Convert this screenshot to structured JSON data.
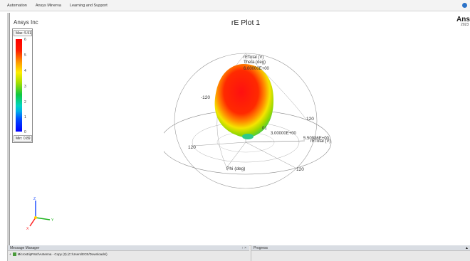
{
  "menubar": {
    "items": [
      "Automation",
      "Ansys Minerva",
      "Learning and Support"
    ]
  },
  "plot": {
    "company": "Ansys Inc",
    "title": "rE Plot 1",
    "brand": "Ansy",
    "brand_sub": "2023"
  },
  "legend": {
    "max_label": "Max: 5.51",
    "min_label": "Min: 0.89",
    "ticks": [
      "6",
      "5",
      "4",
      "3",
      "2",
      "1",
      "0"
    ]
  },
  "axes_labels": {
    "top_quantity": "rETotal (V)",
    "theta": "Theta (deg)",
    "top_value": "6.00000E+00",
    "left_angle": "-120",
    "right_upper_angle": "120",
    "right_lower_angle": "120",
    "left_lower_angle": "120",
    "center_value": "3.00000E+00",
    "center_small": "01",
    "right_value": "5.50936E+00",
    "right_quantity": "rETotal (V)",
    "phi": "Phi (deg)"
  },
  "triad": {
    "z": "Z",
    "y": "Y",
    "x": "X"
  },
  "message_manager": {
    "title": "Message Manager",
    "controls": "↑ ×",
    "row": "MicrostripPatchAntenna - Copy (2) (C:/Users/ECE/Downloads/)"
  },
  "progress": {
    "title": "Progress",
    "arrow": "▲"
  },
  "colors": {
    "red": "#ff0000",
    "yellow": "#ffee00",
    "green": "#10c840",
    "cyan": "#00d5c0",
    "blue": "#0000ff"
  }
}
